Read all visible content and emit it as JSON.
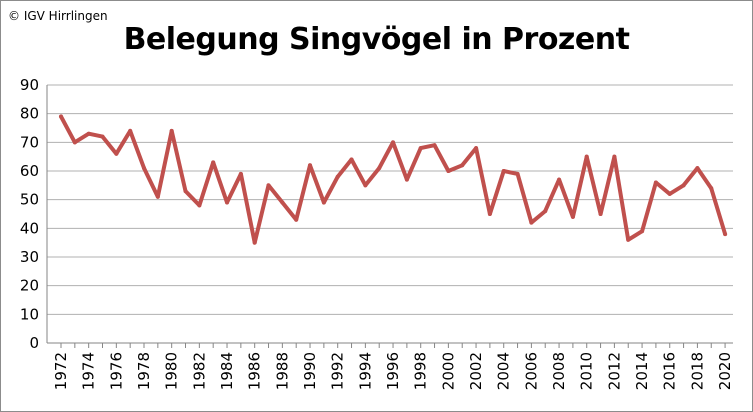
{
  "copyright": "© IGV Hirrlingen",
  "chart_data": {
    "type": "line",
    "title": "Belegung Singvögel in Prozent",
    "xlabel": "",
    "ylabel": "",
    "ylim": [
      0,
      90
    ],
    "yticks": [
      0,
      10,
      20,
      30,
      40,
      50,
      60,
      70,
      80,
      90
    ],
    "xtick_labels": [
      "1972",
      "1974",
      "1976",
      "1978",
      "1980",
      "1982",
      "1984",
      "1986",
      "1988",
      "1990",
      "1992",
      "1994",
      "1996",
      "1998",
      "2000",
      "2002",
      "2004",
      "2006",
      "2008",
      "2010",
      "2012",
      "2014",
      "2016",
      "2018",
      "2020"
    ],
    "grid": true,
    "legend": "none",
    "line_color": "#c0504d",
    "x": [
      1972,
      1973,
      1974,
      1975,
      1976,
      1977,
      1978,
      1979,
      1980,
      1981,
      1982,
      1983,
      1984,
      1985,
      1986,
      1987,
      1988,
      1989,
      1990,
      1991,
      1992,
      1993,
      1994,
      1995,
      1996,
      1997,
      1998,
      1999,
      2000,
      2001,
      2002,
      2003,
      2004,
      2005,
      2006,
      2007,
      2008,
      2009,
      2010,
      2011,
      2012,
      2013,
      2014,
      2015,
      2016,
      2017,
      2018,
      2019,
      2020
    ],
    "values": [
      79,
      70,
      73,
      72,
      66,
      74,
      61,
      51,
      74,
      53,
      48,
      63,
      49,
      59,
      35,
      55,
      49,
      43,
      62,
      49,
      58,
      64,
      55,
      61,
      70,
      57,
      68,
      69,
      60,
      62,
      68,
      45,
      60,
      59,
      42,
      46,
      57,
      44,
      65,
      45,
      65,
      36,
      39,
      56,
      52,
      55,
      61,
      54,
      38
    ]
  }
}
